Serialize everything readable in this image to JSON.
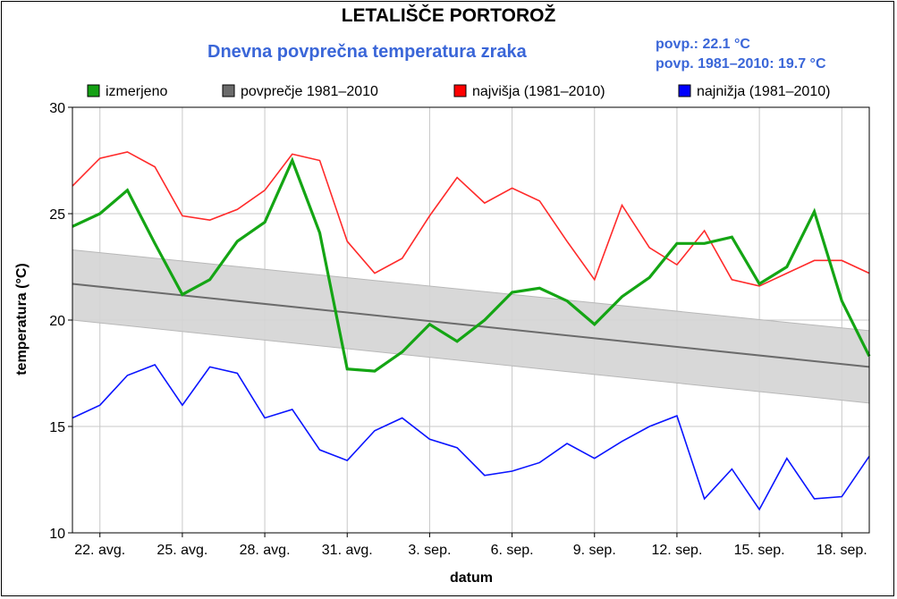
{
  "header": {
    "title": "LETALIŠČE PORTOROŽ",
    "subtitle": "Dnevna povprečna temperatura zraka",
    "stat_current": "povp.: 22.1 °C",
    "stat_normal": "povp. 1981–2010: 19.7 °C"
  },
  "chart_data": {
    "type": "line",
    "xlabel": "datum",
    "ylabel": "temperatura (°C)",
    "ylim": [
      10,
      30
    ],
    "yticks": [
      10,
      15,
      20,
      25,
      30
    ],
    "x_day_range": [
      21,
      50
    ],
    "x_tick_positions": [
      22,
      25,
      28,
      31,
      34,
      37,
      40,
      43,
      46,
      49
    ],
    "x_tick_labels": [
      "22. avg.",
      "25. avg.",
      "28. avg.",
      "31. avg.",
      "3. sep.",
      "6. sep.",
      "9. sep.",
      "12. sep.",
      "15. sep.",
      "18. sep."
    ],
    "grid": true,
    "legend_placement": "top",
    "x": [
      "21. avg.",
      "22. avg.",
      "23. avg.",
      "24. avg.",
      "25. avg.",
      "26. avg.",
      "27. avg.",
      "28. avg.",
      "29. avg.",
      "30. avg.",
      "31. avg.",
      "1. sep.",
      "2. sep.",
      "3. sep.",
      "4. sep.",
      "5. sep.",
      "6. sep.",
      "7. sep.",
      "8. sep.",
      "9. sep.",
      "10. sep.",
      "11. sep.",
      "12. sep.",
      "13. sep.",
      "14. sep.",
      "15. sep.",
      "16. sep.",
      "17. sep.",
      "18. sep.",
      "19. sep."
    ],
    "normal_band": {
      "upper": [
        23.3,
        19.5
      ],
      "lower": [
        20.0,
        16.1
      ],
      "color": "#d4d4d4"
    },
    "series": [
      {
        "name": "povprečje 1981–2010",
        "color": "#6b6b6b",
        "legend_color": "#6b6b6b",
        "values_endpoints": [
          21.7,
          17.8
        ]
      },
      {
        "name": "najvišja (1981–2010)",
        "color": "#ff2a2a",
        "legend_color": "#ff0000",
        "values": [
          26.3,
          27.6,
          27.9,
          27.2,
          24.9,
          24.7,
          25.2,
          26.1,
          27.8,
          27.5,
          23.7,
          22.2,
          22.9,
          24.9,
          26.7,
          25.5,
          26.2,
          25.6,
          23.7,
          21.9,
          25.4,
          23.4,
          22.6,
          24.2,
          21.9,
          21.6,
          22.2,
          22.8,
          22.8,
          22.2
        ]
      },
      {
        "name": "najnižja (1981–2010)",
        "color": "#0a14ff",
        "legend_color": "#0000ff",
        "values": [
          15.4,
          16.0,
          17.4,
          17.9,
          16.0,
          17.8,
          17.5,
          15.4,
          15.8,
          13.9,
          13.4,
          14.8,
          15.4,
          14.4,
          14.0,
          12.7,
          12.9,
          13.3,
          14.2,
          13.5,
          14.3,
          15.0,
          15.5,
          11.6,
          13.0,
          11.1,
          13.5,
          11.6,
          11.7,
          13.6
        ]
      },
      {
        "name": "izmerjeno",
        "color": "#14a514",
        "legend_color": "#14a014",
        "values": [
          24.4,
          25.0,
          26.1,
          23.6,
          21.2,
          21.9,
          23.7,
          24.6,
          27.5,
          24.1,
          17.7,
          17.6,
          18.5,
          19.8,
          19.0,
          20.0,
          21.3,
          21.5,
          20.9,
          19.8,
          21.1,
          22.0,
          23.6,
          23.6,
          23.9,
          21.7,
          22.5,
          25.1,
          20.9,
          18.3
        ]
      }
    ],
    "legend": [
      {
        "label": "izmerjeno",
        "color": "#14a014"
      },
      {
        "label": "povprečje 1981–2010",
        "color": "#6b6b6b"
      },
      {
        "label": "najvišja (1981–2010)",
        "color": "#ff0000"
      },
      {
        "label": "najnižja (1981–2010)",
        "color": "#0000ff"
      }
    ]
  }
}
